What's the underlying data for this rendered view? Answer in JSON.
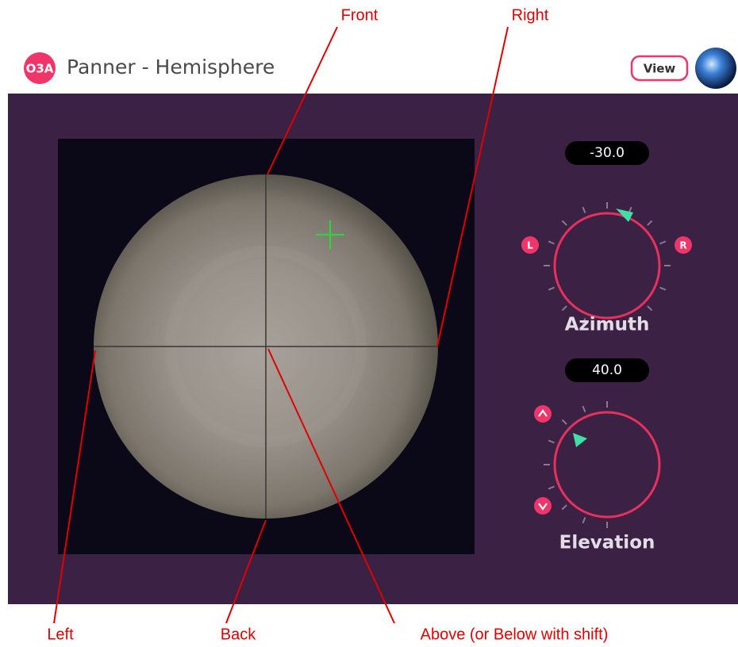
{
  "header": {
    "badge": "O3A",
    "title": "Panner - Hemisphere",
    "view_button": "View"
  },
  "azimuth": {
    "value": "-30.0",
    "label": "Azimuth",
    "left": "L",
    "right": "R"
  },
  "elevation": {
    "value": "40.0",
    "label": "Elevation"
  },
  "annotations": {
    "front": "Front",
    "right": "Right",
    "left": "Left",
    "back": "Back",
    "above": "Above (or Below with shift)"
  }
}
